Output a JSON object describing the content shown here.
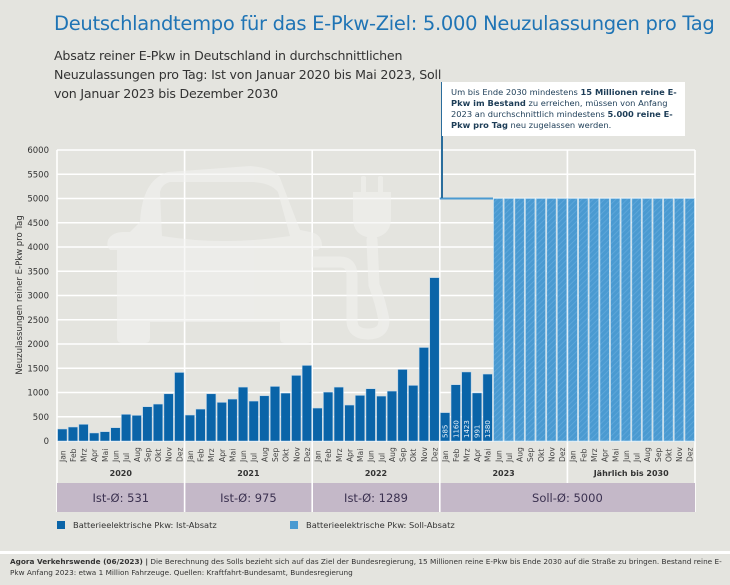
{
  "header": {
    "title": "Deutschlandtempo für das E-Pkw-Ziel: 5.000 Neuzulassungen pro Tag",
    "subtitle": "Absatz reiner E-Pkw in Deutschland in durchschnittlichen Neuzulassungen pro Tag: Ist von Januar 2020 bis Mai 2023, Soll von Januar 2023 bis Dezember 2030"
  },
  "annotation": {
    "part1": "Um bis Ende 2030 mindestens ",
    "bold1": "15 Millionen reine E-Pkw im Bestand",
    "part2": " zu erreichen, müssen von Anfang 2023 an durchschnittlich mindestens ",
    "bold2": "5.000 reine E-Pkw pro Tag",
    "part3": " neu zugelassen werden."
  },
  "colors": {
    "ist": "#0a64a8",
    "soll": "#4a9ad1",
    "title": "#1f74b5",
    "band": "#c4b8c8",
    "background": "#e4e4df"
  },
  "chart_data": {
    "type": "bar",
    "title": "Deutschlandtempo für das E-Pkw-Ziel: 5.000 Neuzulassungen pro Tag",
    "xlabel": "",
    "ylabel": "Neuzulassungen reiner E-Pkw pro Tag",
    "ylim": [
      0,
      6000
    ],
    "yticks": [
      0,
      500,
      1000,
      1500,
      2000,
      2500,
      3000,
      3500,
      4000,
      4500,
      5000,
      5500,
      6000
    ],
    "grid": true,
    "months": [
      "Jan",
      "Feb",
      "Mrz",
      "Apr",
      "Mai",
      "Jun",
      "Jul",
      "Aug",
      "Sep",
      "Okt",
      "Nov",
      "Dez"
    ],
    "groups": [
      {
        "label": "2020",
        "average_label": "Ist-Ø: 531"
      },
      {
        "label": "2021",
        "average_label": "Ist-Ø: 975"
      },
      {
        "label": "2022",
        "average_label": "Ist-Ø: 1289"
      },
      {
        "label": "2023",
        "average_label": "Soll-Ø: 5000"
      },
      {
        "label": "Jährlich bis 2030",
        "average_label": ""
      }
    ],
    "series": [
      {
        "name": "Batterieelektrische Pkw: Ist-Absatz",
        "values": [
          247,
          288,
          343,
          165,
          192,
          274,
          549,
          528,
          706,
          761,
          973,
          1413,
          535,
          658,
          973,
          796,
          864,
          1111,
          823,
          932,
          1125,
          988,
          1352,
          1558,
          679,
          1008,
          1111,
          741,
          940,
          1077,
          926,
          1029,
          1475,
          1146,
          1928,
          3368,
          585,
          1160,
          1423,
          991,
          1380
        ],
        "labeled_values": {
          "36": "585",
          "37": "1160",
          "38": "1423",
          "39": "991",
          "40": "1380"
        }
      },
      {
        "name": "Batterieelektrische Pkw: Soll-Absatz",
        "start_index": 41,
        "values": [
          5000,
          5000,
          5000,
          5000,
          5000,
          5000,
          5000,
          5000,
          5000,
          5000,
          5000,
          5000,
          5000,
          5000,
          5000,
          5000,
          5000,
          5000,
          5000
        ],
        "target_line": {
          "from_index": 36,
          "to_index": 40,
          "value": 5000
        }
      }
    ],
    "legend": [
      "Batterieelektrische Pkw: Ist-Absatz",
      "Batterieelektrische Pkw: Soll-Absatz"
    ],
    "legend_position": "bottom"
  },
  "legend": {
    "ist": "Batterieelektrische Pkw: Ist-Absatz",
    "soll": "Batterieelektrische Pkw: Soll-Absatz"
  },
  "footer": {
    "source_bold": "Agora Verkehrswende (06/2023) |",
    "text": " Die Berechnung des Solls bezieht sich auf das Ziel der Bundesregierung, 15 Millionen reine E-Pkw bis Ende 2030 auf die Straße zu bringen. Bestand reine E-Pkw Anfang 2023: etwa 1 Million Fahrzeuge. Quellen: Kraftfahrt-Bundesamt, Bundesregierung"
  }
}
